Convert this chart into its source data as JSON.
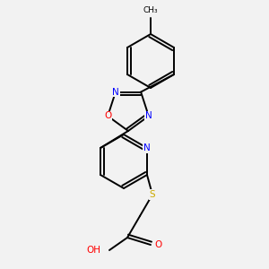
{
  "background_color": "#f2f2f2",
  "bond_color": "#000000",
  "atom_colors": {
    "N": "#0000ff",
    "O": "#ff0000",
    "S": "#ccaa00",
    "C": "#000000",
    "H": "#888888"
  },
  "lw": 1.4,
  "fontsize": 7.5
}
